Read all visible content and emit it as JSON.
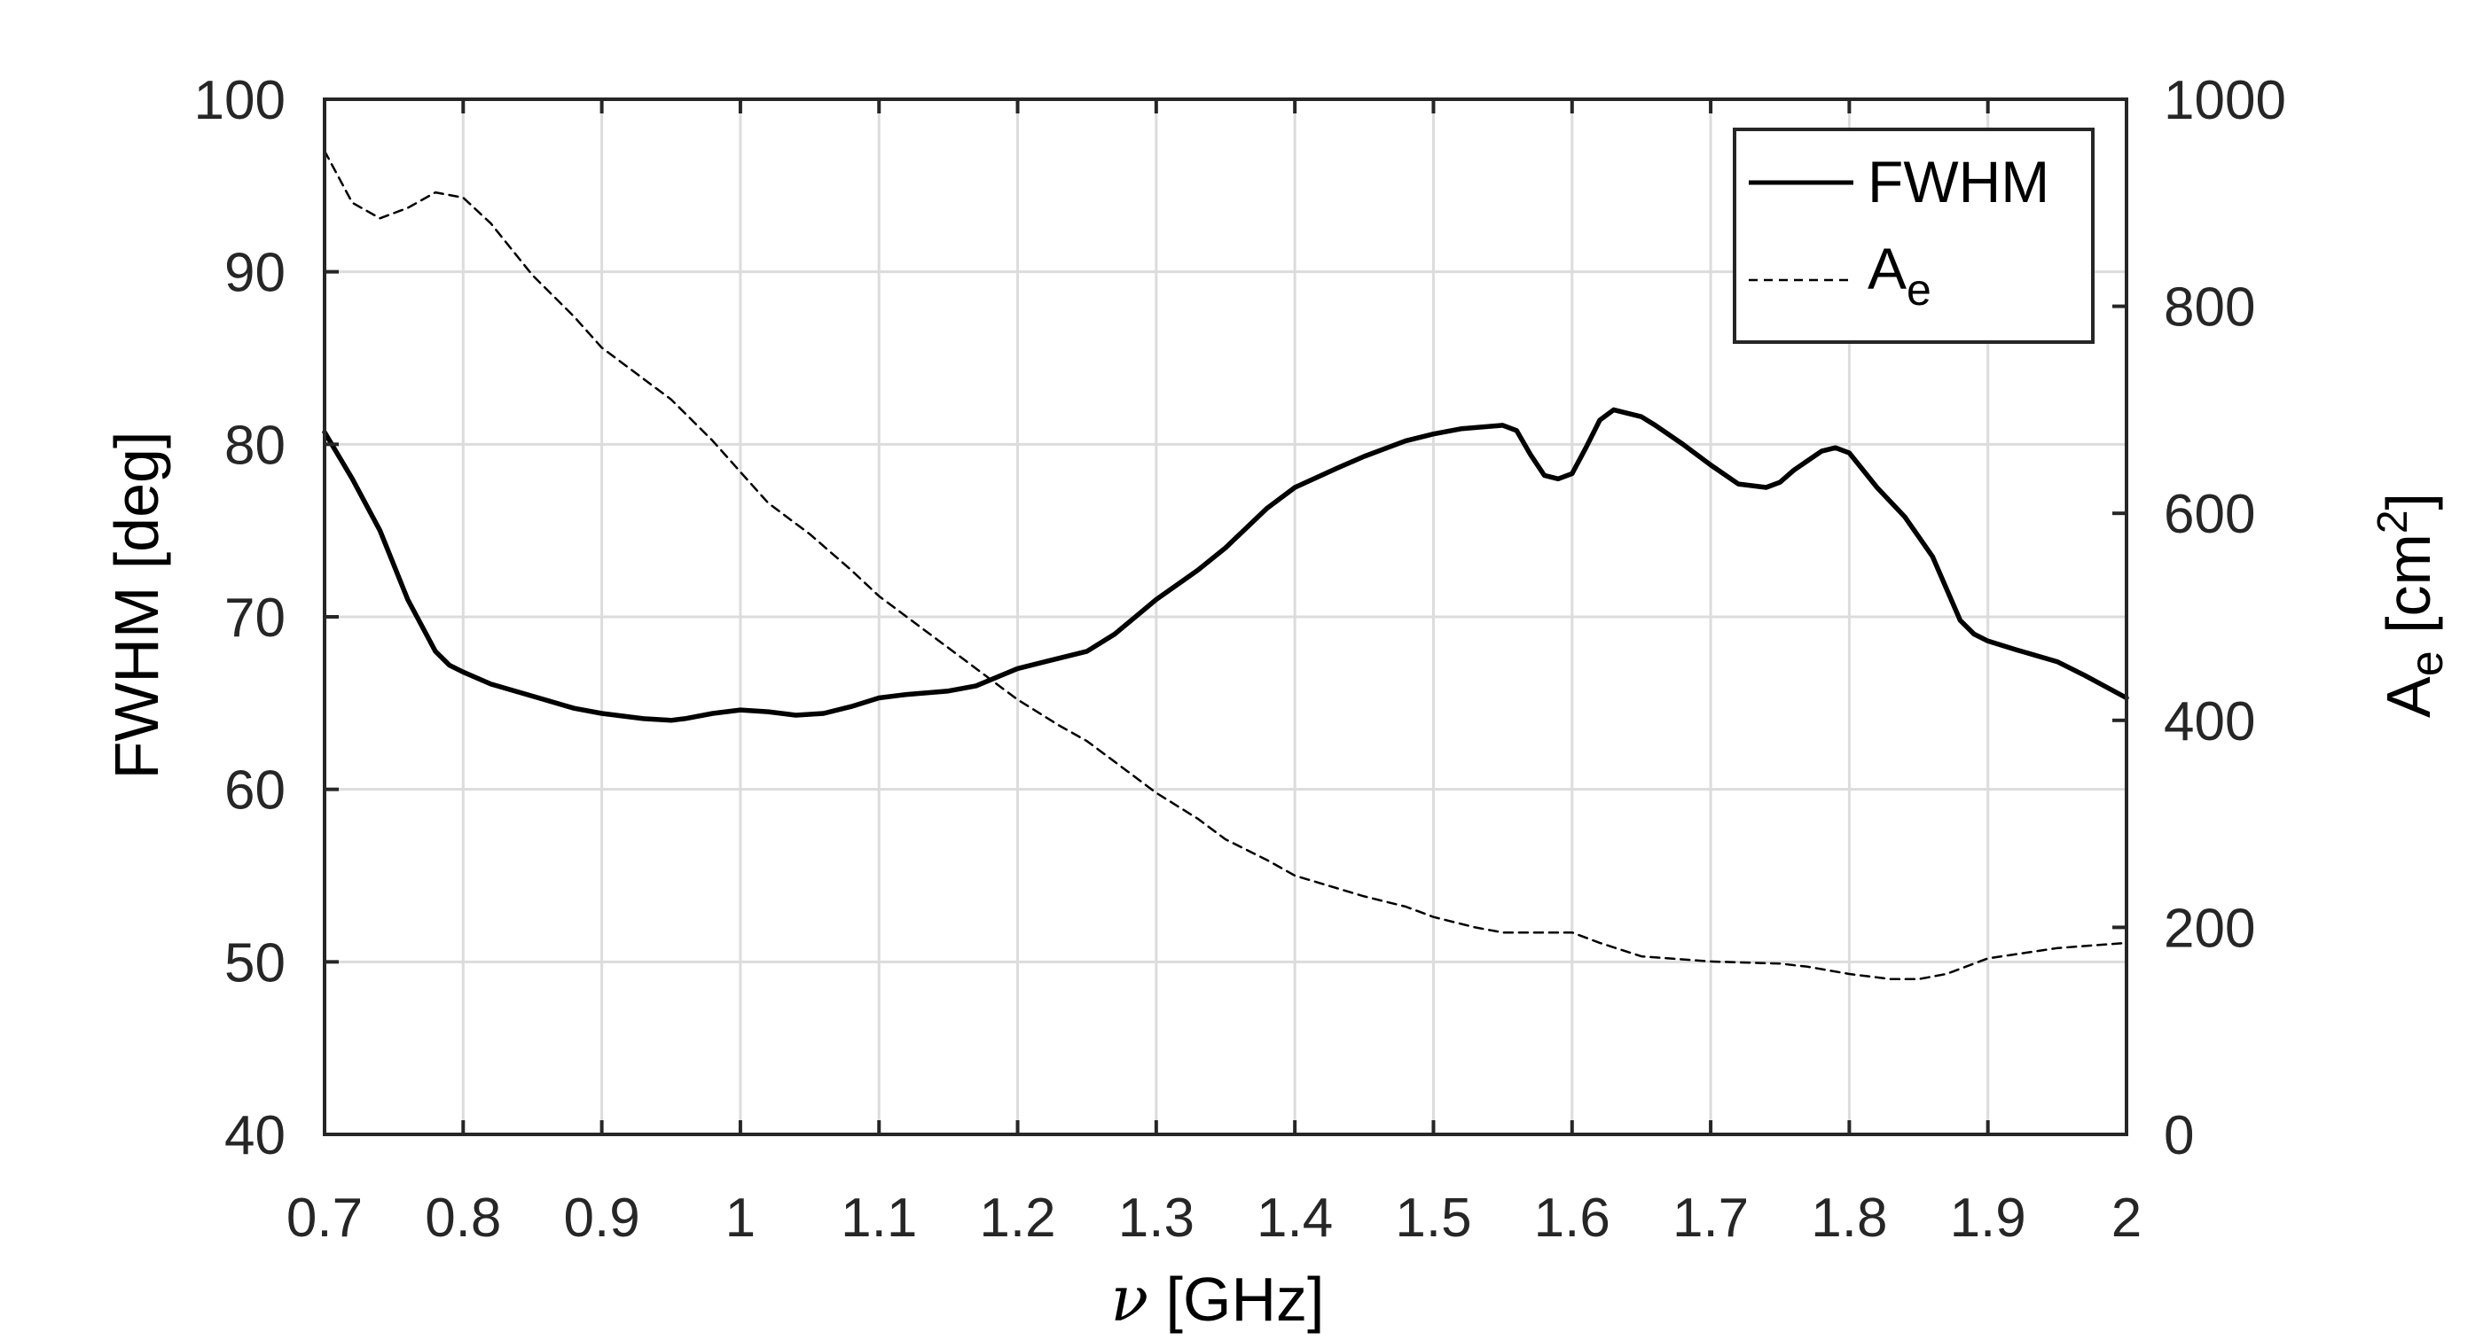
{
  "chart_data": {
    "type": "line",
    "x_ticks": [
      "0.7",
      "0.8",
      "0.9",
      "1",
      "1.1",
      "1.2",
      "1.3",
      "1.4",
      "1.5",
      "1.6",
      "1.7",
      "1.8",
      "1.9",
      "2"
    ],
    "y_left_ticks": [
      "40",
      "50",
      "60",
      "70",
      "80",
      "90",
      "100"
    ],
    "y_right_ticks": [
      "0",
      "200",
      "400",
      "600",
      "800",
      "1000"
    ],
    "xlabel": {
      "symbol": "ν",
      "text": " [GHz]"
    },
    "ylabel_left": "FWHM [deg]",
    "ylabel_right": {
      "main": "A",
      "sub": "e",
      "rest": " [cm",
      "sup": "2",
      "end": "]"
    },
    "xlim": [
      0.7,
      2.0
    ],
    "ylim_left": [
      40,
      100
    ],
    "ylim_right": [
      0,
      1000
    ],
    "grid": true,
    "legend_position": "top-right",
    "legend": {
      "fwhm": "FWHM",
      "ae_main": "A",
      "ae_sub": "e"
    },
    "series": [
      {
        "name": "FWHM",
        "axis": "left",
        "style": "solid",
        "x": [
          0.7,
          0.72,
          0.74,
          0.76,
          0.78,
          0.79,
          0.8,
          0.82,
          0.85,
          0.88,
          0.9,
          0.93,
          0.95,
          0.96,
          0.98,
          1.0,
          1.02,
          1.04,
          1.06,
          1.08,
          1.1,
          1.12,
          1.15,
          1.17,
          1.2,
          1.22,
          1.25,
          1.27,
          1.3,
          1.33,
          1.35,
          1.38,
          1.4,
          1.43,
          1.45,
          1.48,
          1.5,
          1.52,
          1.55,
          1.56,
          1.57,
          1.58,
          1.59,
          1.6,
          1.61,
          1.62,
          1.63,
          1.64,
          1.65,
          1.66,
          1.68,
          1.7,
          1.72,
          1.74,
          1.75,
          1.76,
          1.78,
          1.79,
          1.8,
          1.81,
          1.82,
          1.84,
          1.86,
          1.88,
          1.89,
          1.9,
          1.92,
          1.95,
          1.97,
          2.0
        ],
        "values": [
          80.7,
          78.0,
          75.0,
          71.0,
          68.0,
          67.2,
          66.8,
          66.1,
          65.4,
          64.7,
          64.4,
          64.1,
          64.0,
          64.1,
          64.4,
          64.6,
          64.5,
          64.3,
          64.4,
          64.8,
          65.3,
          65.5,
          65.7,
          66.0,
          67.0,
          67.4,
          68.0,
          69.0,
          71.0,
          72.7,
          74.0,
          76.3,
          77.5,
          78.6,
          79.3,
          80.2,
          80.6,
          80.9,
          81.1,
          80.8,
          79.4,
          78.2,
          78.0,
          78.3,
          79.8,
          81.4,
          82.0,
          81.8,
          81.6,
          81.1,
          80.0,
          78.8,
          77.7,
          77.5,
          77.8,
          78.5,
          79.6,
          79.8,
          79.5,
          78.5,
          77.5,
          75.8,
          73.5,
          69.8,
          69.0,
          68.6,
          68.1,
          67.4,
          66.6,
          65.3
        ]
      },
      {
        "name": "A_e",
        "axis": "right",
        "style": "dashed",
        "x": [
          0.7,
          0.72,
          0.74,
          0.76,
          0.78,
          0.8,
          0.82,
          0.85,
          0.88,
          0.9,
          0.93,
          0.95,
          0.98,
          1.0,
          1.02,
          1.05,
          1.08,
          1.1,
          1.13,
          1.15,
          1.18,
          1.2,
          1.23,
          1.25,
          1.28,
          1.3,
          1.33,
          1.35,
          1.38,
          1.4,
          1.43,
          1.45,
          1.48,
          1.5,
          1.53,
          1.55,
          1.58,
          1.6,
          1.62,
          1.65,
          1.7,
          1.75,
          1.77,
          1.8,
          1.83,
          1.85,
          1.87,
          1.9,
          1.95,
          2.0
        ],
        "values": [
          950,
          900,
          885,
          895,
          910,
          905,
          880,
          830,
          790,
          760,
          730,
          710,
          670,
          640,
          610,
          580,
          545,
          520,
          490,
          470,
          440,
          420,
          395,
          380,
          350,
          330,
          305,
          285,
          265,
          250,
          238,
          230,
          220,
          210,
          200,
          195,
          195,
          195,
          185,
          172,
          167,
          165,
          162,
          155,
          150,
          150,
          155,
          170,
          180,
          185
        ]
      }
    ]
  }
}
